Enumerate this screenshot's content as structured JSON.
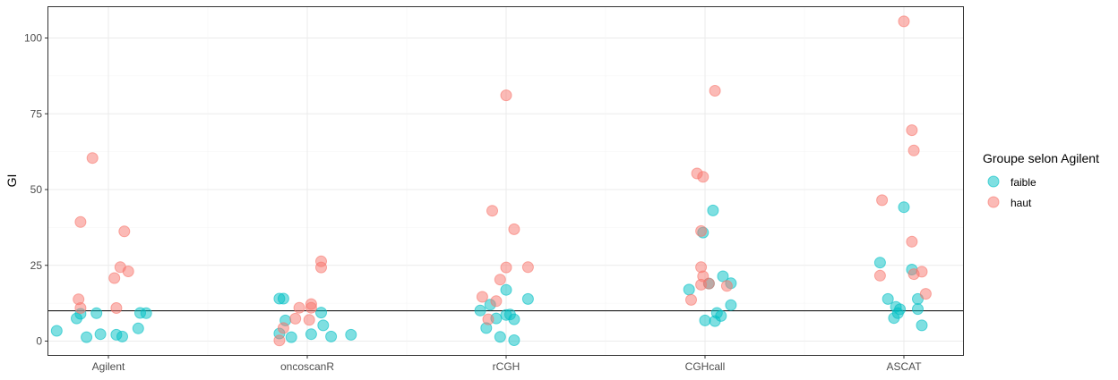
{
  "chart_data": {
    "type": "scatter",
    "xlabel": "",
    "ylabel": "GI",
    "categories": [
      "Agilent",
      "oncoscanR",
      "rCGH",
      "CGHcall",
      "ASCAT"
    ],
    "ylim": [
      -5,
      110
    ],
    "yticks": [
      0,
      25,
      50,
      75,
      100
    ],
    "y_tick_labels": [
      "0",
      "25",
      "50",
      "75",
      "100"
    ],
    "hline": 10,
    "grid": true,
    "legend": {
      "title": "Groupe selon Agilent",
      "position": "right",
      "items": [
        {
          "label": "faible",
          "color": "#00BFC4"
        },
        {
          "label": "haut",
          "color": "#F8766D"
        }
      ]
    },
    "series": [
      {
        "name": "faible",
        "color": "#00BFC4",
        "points": [
          {
            "category": "Agilent",
            "jitter": -0.26,
            "y": 3.4
          },
          {
            "category": "Agilent",
            "jitter": -0.16,
            "y": 7.5
          },
          {
            "category": "Agilent",
            "jitter": -0.14,
            "y": 9.0
          },
          {
            "category": "Agilent",
            "jitter": -0.11,
            "y": 1.3
          },
          {
            "category": "Agilent",
            "jitter": -0.06,
            "y": 9.2
          },
          {
            "category": "Agilent",
            "jitter": -0.04,
            "y": 2.3
          },
          {
            "category": "Agilent",
            "jitter": 0.04,
            "y": 2.1
          },
          {
            "category": "Agilent",
            "jitter": 0.07,
            "y": 1.5
          },
          {
            "category": "Agilent",
            "jitter": 0.15,
            "y": 4.2
          },
          {
            "category": "Agilent",
            "jitter": 0.16,
            "y": 9.3
          },
          {
            "category": "Agilent",
            "jitter": 0.19,
            "y": 9.2
          },
          {
            "category": "oncoscanR",
            "jitter": -0.14,
            "y": 14.0
          },
          {
            "category": "oncoscanR",
            "jitter": -0.12,
            "y": 14.0
          },
          {
            "category": "oncoscanR",
            "jitter": -0.11,
            "y": 6.8
          },
          {
            "category": "oncoscanR",
            "jitter": -0.08,
            "y": 1.3
          },
          {
            "category": "oncoscanR",
            "jitter": -0.14,
            "y": 2.5
          },
          {
            "category": "oncoscanR",
            "jitter": 0.02,
            "y": 2.3
          },
          {
            "category": "oncoscanR",
            "jitter": 0.07,
            "y": 9.4
          },
          {
            "category": "oncoscanR",
            "jitter": 0.08,
            "y": 5.2
          },
          {
            "category": "oncoscanR",
            "jitter": 0.12,
            "y": 1.5
          },
          {
            "category": "oncoscanR",
            "jitter": 0.22,
            "y": 2.1
          },
          {
            "category": "rCGH",
            "jitter": -0.13,
            "y": 10.1
          },
          {
            "category": "rCGH",
            "jitter": -0.08,
            "y": 12.0
          },
          {
            "category": "rCGH",
            "jitter": -0.1,
            "y": 4.3
          },
          {
            "category": "rCGH",
            "jitter": -0.05,
            "y": 7.5
          },
          {
            "category": "rCGH",
            "jitter": -0.03,
            "y": 1.4
          },
          {
            "category": "rCGH",
            "jitter": 0.0,
            "y": 16.9
          },
          {
            "category": "rCGH",
            "jitter": 0.0,
            "y": 8.6
          },
          {
            "category": "rCGH",
            "jitter": 0.02,
            "y": 8.8
          },
          {
            "category": "rCGH",
            "jitter": 0.04,
            "y": 7.2
          },
          {
            "category": "rCGH",
            "jitter": 0.04,
            "y": 0.3
          },
          {
            "category": "rCGH",
            "jitter": 0.11,
            "y": 13.9
          },
          {
            "category": "CGHcall",
            "jitter": -0.08,
            "y": 17.0
          },
          {
            "category": "CGHcall",
            "jitter": -0.01,
            "y": 35.8
          },
          {
            "category": "CGHcall",
            "jitter": 0.02,
            "y": 19.0
          },
          {
            "category": "CGHcall",
            "jitter": 0.0,
            "y": 6.8
          },
          {
            "category": "CGHcall",
            "jitter": 0.04,
            "y": 43.1
          },
          {
            "category": "CGHcall",
            "jitter": 0.05,
            "y": 6.6
          },
          {
            "category": "CGHcall",
            "jitter": 0.06,
            "y": 9.3
          },
          {
            "category": "CGHcall",
            "jitter": 0.09,
            "y": 21.4
          },
          {
            "category": "CGHcall",
            "jitter": 0.08,
            "y": 8.3
          },
          {
            "category": "CGHcall",
            "jitter": 0.13,
            "y": 19.1
          },
          {
            "category": "CGHcall",
            "jitter": 0.13,
            "y": 11.9
          },
          {
            "category": "ASCAT",
            "jitter": -0.12,
            "y": 25.9
          },
          {
            "category": "ASCAT",
            "jitter": -0.08,
            "y": 13.9
          },
          {
            "category": "ASCAT",
            "jitter": -0.05,
            "y": 7.6
          },
          {
            "category": "ASCAT",
            "jitter": -0.04,
            "y": 11.3
          },
          {
            "category": "ASCAT",
            "jitter": -0.02,
            "y": 10.5
          },
          {
            "category": "ASCAT",
            "jitter": -0.03,
            "y": 9.2
          },
          {
            "category": "ASCAT",
            "jitter": 0.0,
            "y": 44.2
          },
          {
            "category": "ASCAT",
            "jitter": 0.04,
            "y": 23.6
          },
          {
            "category": "ASCAT",
            "jitter": 0.07,
            "y": 13.9
          },
          {
            "category": "ASCAT",
            "jitter": 0.07,
            "y": 10.6
          },
          {
            "category": "ASCAT",
            "jitter": 0.09,
            "y": 5.2
          }
        ]
      },
      {
        "name": "haut",
        "color": "#F8766D",
        "points": [
          {
            "category": "Agilent",
            "jitter": -0.08,
            "y": 60.4
          },
          {
            "category": "Agilent",
            "jitter": -0.14,
            "y": 39.3
          },
          {
            "category": "Agilent",
            "jitter": 0.08,
            "y": 36.2
          },
          {
            "category": "Agilent",
            "jitter": 0.06,
            "y": 24.4
          },
          {
            "category": "Agilent",
            "jitter": 0.1,
            "y": 23.0
          },
          {
            "category": "Agilent",
            "jitter": 0.03,
            "y": 20.8
          },
          {
            "category": "Agilent",
            "jitter": -0.15,
            "y": 13.8
          },
          {
            "category": "Agilent",
            "jitter": -0.14,
            "y": 10.9
          },
          {
            "category": "Agilent",
            "jitter": 0.04,
            "y": 10.9
          },
          {
            "category": "oncoscanR",
            "jitter": 0.07,
            "y": 26.3
          },
          {
            "category": "oncoscanR",
            "jitter": 0.07,
            "y": 24.3
          },
          {
            "category": "oncoscanR",
            "jitter": 0.02,
            "y": 12.2
          },
          {
            "category": "oncoscanR",
            "jitter": 0.02,
            "y": 11.0
          },
          {
            "category": "oncoscanR",
            "jitter": -0.04,
            "y": 11.0
          },
          {
            "category": "oncoscanR",
            "jitter": -0.06,
            "y": 7.4
          },
          {
            "category": "oncoscanR",
            "jitter": 0.01,
            "y": 7.0
          },
          {
            "category": "oncoscanR",
            "jitter": -0.12,
            "y": 4.3
          },
          {
            "category": "oncoscanR",
            "jitter": -0.14,
            "y": 0.2
          },
          {
            "category": "rCGH",
            "jitter": 0.0,
            "y": 81.1
          },
          {
            "category": "rCGH",
            "jitter": -0.07,
            "y": 43.0
          },
          {
            "category": "rCGH",
            "jitter": 0.04,
            "y": 36.9
          },
          {
            "category": "rCGH",
            "jitter": 0.0,
            "y": 24.3
          },
          {
            "category": "rCGH",
            "jitter": 0.11,
            "y": 24.4
          },
          {
            "category": "rCGH",
            "jitter": -0.03,
            "y": 20.3
          },
          {
            "category": "rCGH",
            "jitter": -0.12,
            "y": 14.6
          },
          {
            "category": "rCGH",
            "jitter": -0.05,
            "y": 13.2
          },
          {
            "category": "rCGH",
            "jitter": -0.09,
            "y": 7.2
          },
          {
            "category": "CGHcall",
            "jitter": 0.05,
            "y": 82.6
          },
          {
            "category": "CGHcall",
            "jitter": -0.04,
            "y": 55.3
          },
          {
            "category": "CGHcall",
            "jitter": -0.01,
            "y": 54.2
          },
          {
            "category": "CGHcall",
            "jitter": -0.02,
            "y": 36.3
          },
          {
            "category": "CGHcall",
            "jitter": -0.02,
            "y": 24.4
          },
          {
            "category": "CGHcall",
            "jitter": -0.01,
            "y": 21.4
          },
          {
            "category": "CGHcall",
            "jitter": 0.02,
            "y": 19.0
          },
          {
            "category": "CGHcall",
            "jitter": -0.02,
            "y": 18.6
          },
          {
            "category": "CGHcall",
            "jitter": 0.11,
            "y": 18.2
          },
          {
            "category": "CGHcall",
            "jitter": -0.07,
            "y": 13.6
          },
          {
            "category": "ASCAT",
            "jitter": 0.0,
            "y": 105.5
          },
          {
            "category": "ASCAT",
            "jitter": 0.04,
            "y": 69.6
          },
          {
            "category": "ASCAT",
            "jitter": 0.05,
            "y": 62.9
          },
          {
            "category": "ASCAT",
            "jitter": -0.11,
            "y": 46.5
          },
          {
            "category": "ASCAT",
            "jitter": 0.04,
            "y": 32.8
          },
          {
            "category": "ASCAT",
            "jitter": -0.12,
            "y": 21.6
          },
          {
            "category": "ASCAT",
            "jitter": 0.05,
            "y": 22.1
          },
          {
            "category": "ASCAT",
            "jitter": 0.09,
            "y": 22.9
          },
          {
            "category": "ASCAT",
            "jitter": 0.11,
            "y": 15.6
          }
        ]
      }
    ]
  }
}
